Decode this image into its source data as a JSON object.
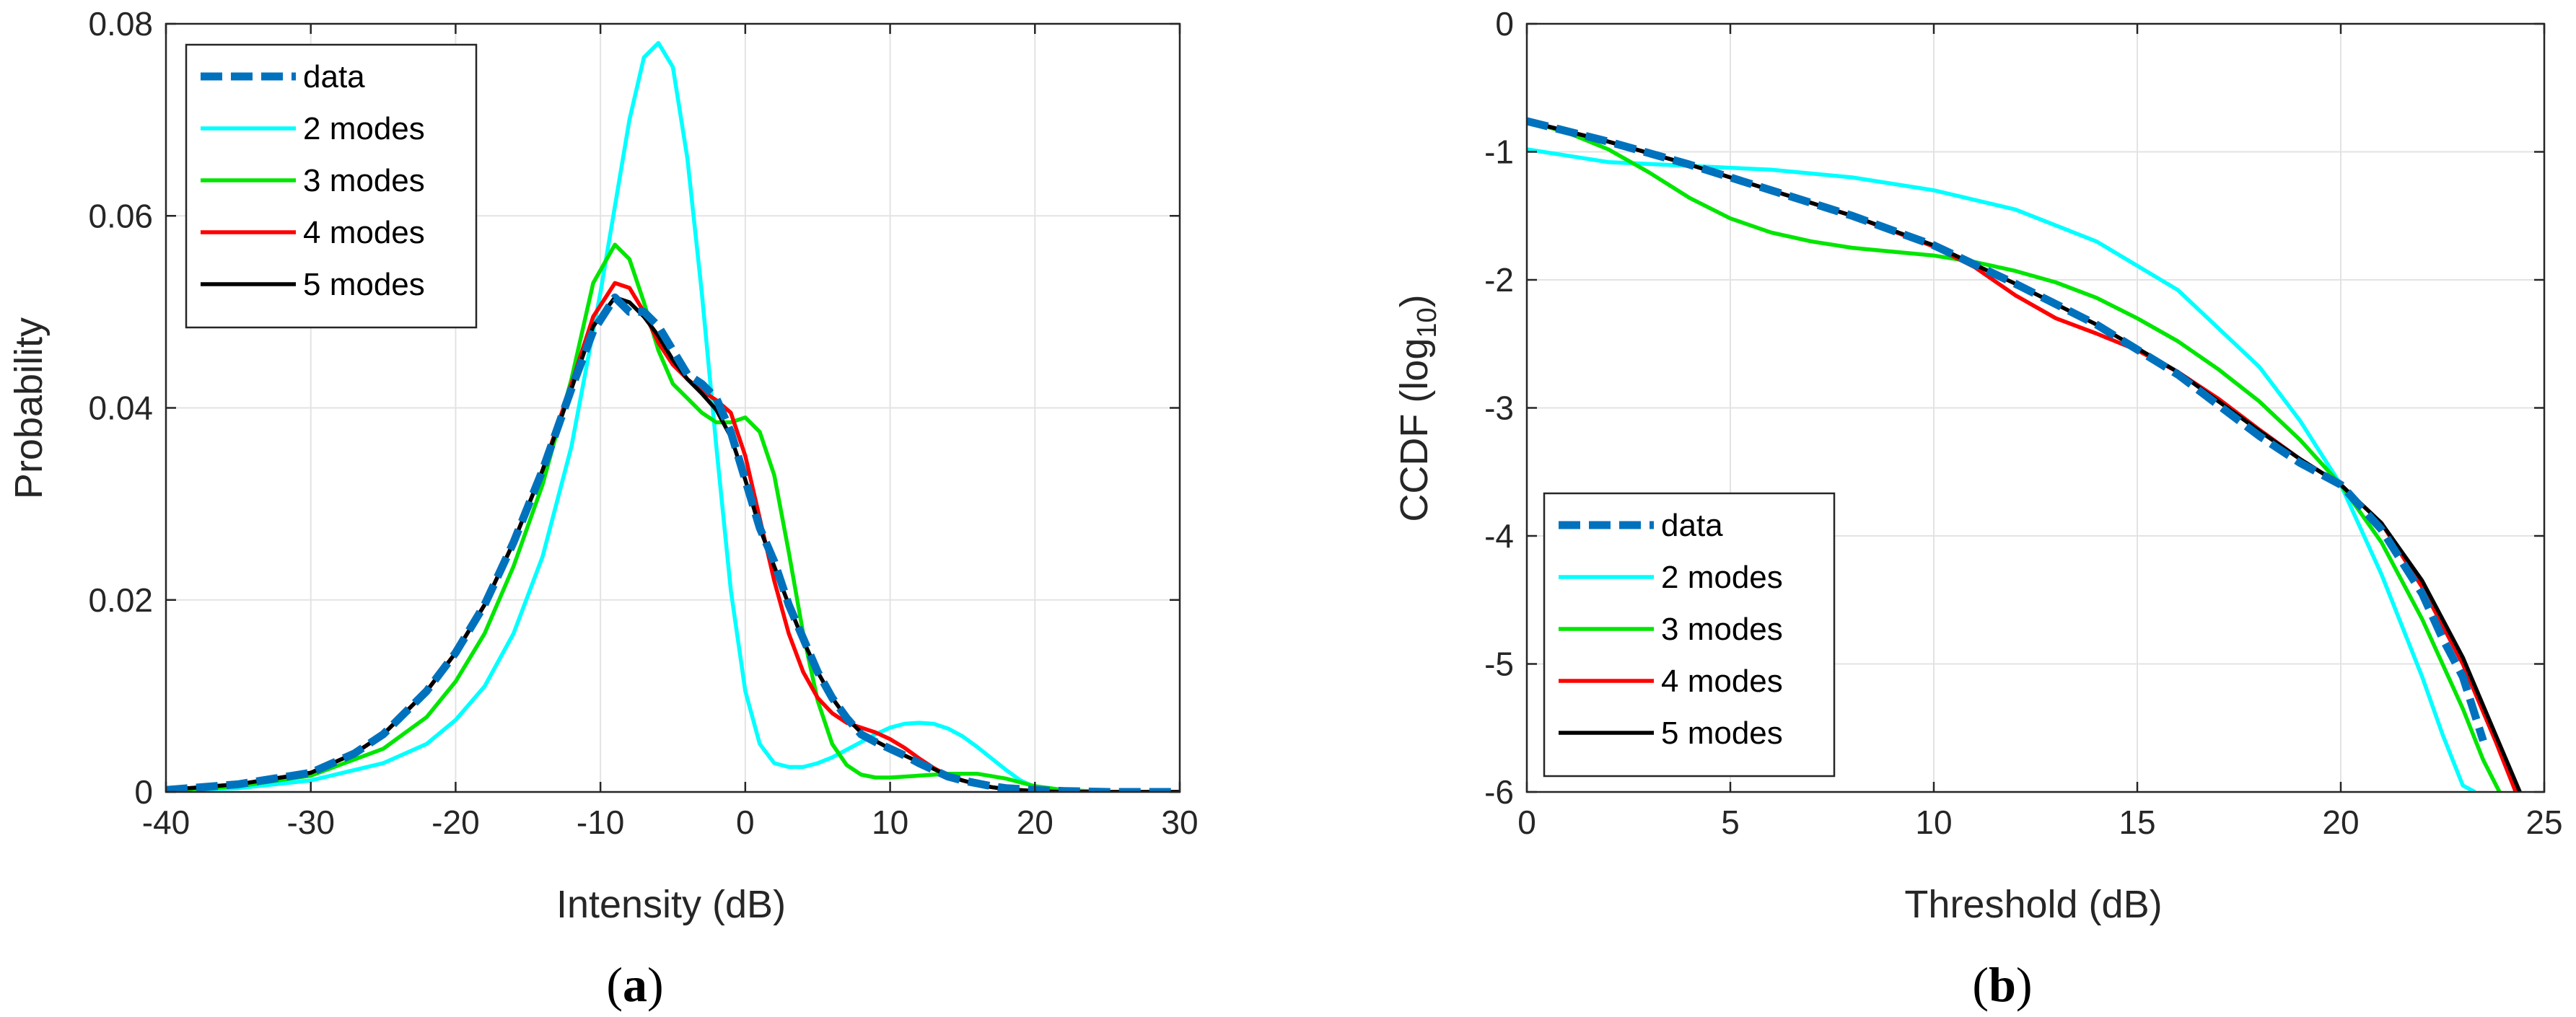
{
  "chart_data": [
    {
      "type": "line",
      "panel": "a",
      "caption": "(a)",
      "caption_letter": "a",
      "xlabel": "Intensity (dB)",
      "ylabel": "Probability",
      "xlim": [
        -40,
        30
      ],
      "ylim": [
        0,
        0.08
      ],
      "xticks": [
        -40,
        -30,
        -20,
        -10,
        0,
        10,
        20,
        30
      ],
      "xtick_labels": [
        "-40",
        "-30",
        "-20",
        "-10",
        "0",
        "10",
        "20",
        "30"
      ],
      "yticks": [
        0,
        0.02,
        0.04,
        0.06,
        0.08
      ],
      "ytick_labels": [
        "0",
        "0.02",
        "0.04",
        "0.06",
        "0.08"
      ],
      "grid": true,
      "legend_position": "top-left",
      "series": [
        {
          "name": "data",
          "color": "#0072bd",
          "style": "dashed",
          "x": [
            -40,
            -35,
            -30,
            -27,
            -25,
            -22,
            -20,
            -18,
            -16,
            -14,
            -12,
            -10.5,
            -9,
            -8,
            -7,
            -6,
            -5,
            -4,
            -3,
            -2,
            -1,
            0,
            1,
            2,
            3,
            4,
            5,
            6,
            7,
            8,
            9,
            10,
            11,
            12,
            13,
            14,
            15,
            16,
            17,
            18,
            20,
            22,
            25,
            30
          ],
          "y": [
            0.0002,
            0.0008,
            0.002,
            0.004,
            0.006,
            0.0105,
            0.0145,
            0.0195,
            0.026,
            0.0335,
            0.042,
            0.048,
            0.0515,
            0.05,
            0.05,
            0.0485,
            0.046,
            0.0435,
            0.0425,
            0.041,
            0.0375,
            0.0325,
            0.0275,
            0.024,
            0.0195,
            0.016,
            0.0125,
            0.0098,
            0.0077,
            0.006,
            0.0052,
            0.0045,
            0.0038,
            0.003,
            0.0023,
            0.0016,
            0.0012,
            0.0009,
            0.0006,
            0.0004,
            0.0002,
            0.0001,
            0.0,
            0.0
          ]
        },
        {
          "name": "2 modes",
          "color": "#00ffff",
          "style": "solid",
          "x": [
            -40,
            -35,
            -30,
            -25,
            -22,
            -20,
            -18,
            -16,
            -14,
            -12,
            -10,
            -9,
            -8,
            -7,
            -6,
            -5,
            -4,
            -3,
            -2,
            -1,
            0,
            1,
            2,
            3,
            4,
            5,
            6,
            7,
            8,
            9,
            10,
            11,
            12,
            13,
            14,
            15,
            16,
            17,
            18,
            19,
            20,
            22,
            25,
            30
          ],
          "y": [
            0.0001,
            0.0004,
            0.0012,
            0.003,
            0.005,
            0.0075,
            0.011,
            0.0165,
            0.0245,
            0.036,
            0.052,
            0.061,
            0.07,
            0.0765,
            0.078,
            0.0755,
            0.066,
            0.052,
            0.036,
            0.021,
            0.0105,
            0.005,
            0.003,
            0.0026,
            0.0026,
            0.003,
            0.0036,
            0.0044,
            0.0052,
            0.006,
            0.0067,
            0.0071,
            0.0072,
            0.0071,
            0.0066,
            0.0058,
            0.0047,
            0.0035,
            0.0023,
            0.0012,
            0.0005,
            0.0001,
            0.0,
            0.0
          ]
        },
        {
          "name": "3 modes",
          "color": "#00e600",
          "style": "solid",
          "x": [
            -40,
            -35,
            -30,
            -25,
            -22,
            -20,
            -18,
            -16,
            -14,
            -12,
            -10.5,
            -9,
            -8,
            -7,
            -6,
            -5,
            -4,
            -3,
            -2,
            -1,
            0,
            1,
            2,
            3,
            4,
            5,
            6,
            7,
            8,
            9,
            10,
            12,
            14,
            16,
            18,
            20,
            22,
            25,
            30
          ],
          "y": [
            0.0001,
            0.0006,
            0.0017,
            0.0045,
            0.0078,
            0.0115,
            0.0165,
            0.0235,
            0.032,
            0.043,
            0.053,
            0.057,
            0.0555,
            0.051,
            0.046,
            0.0425,
            0.041,
            0.0395,
            0.0385,
            0.0385,
            0.039,
            0.0375,
            0.033,
            0.025,
            0.0165,
            0.0095,
            0.005,
            0.0028,
            0.0018,
            0.0015,
            0.0015,
            0.0017,
            0.0019,
            0.0019,
            0.0014,
            0.0006,
            0.0002,
            0.0,
            0.0
          ]
        },
        {
          "name": "4 modes",
          "color": "#ff0000",
          "style": "solid",
          "x": [
            -40,
            -35,
            -30,
            -27,
            -25,
            -22,
            -20,
            -18,
            -16,
            -14,
            -12,
            -10.5,
            -9,
            -8,
            -7,
            -6,
            -5,
            -4,
            -3,
            -2,
            -1,
            0,
            1,
            2,
            3,
            4,
            5,
            6,
            7,
            8,
            9,
            10,
            11,
            12,
            13,
            14,
            15,
            16,
            17,
            18,
            20,
            22,
            25,
            30
          ],
          "y": [
            0.0002,
            0.0008,
            0.002,
            0.004,
            0.006,
            0.0105,
            0.0145,
            0.0195,
            0.026,
            0.0335,
            0.0425,
            0.0495,
            0.053,
            0.0525,
            0.05,
            0.0468,
            0.0445,
            0.043,
            0.0418,
            0.0408,
            0.0395,
            0.035,
            0.0285,
            0.022,
            0.0165,
            0.0125,
            0.0098,
            0.0082,
            0.0072,
            0.0067,
            0.0062,
            0.0055,
            0.0046,
            0.0035,
            0.0025,
            0.0017,
            0.0012,
            0.0008,
            0.0005,
            0.0003,
            0.0001,
            0.0,
            0.0,
            0.0
          ]
        },
        {
          "name": "5 modes",
          "color": "#000000",
          "style": "solid",
          "x": [
            -40,
            -35,
            -30,
            -27,
            -25,
            -22,
            -20,
            -18,
            -16,
            -14,
            -12,
            -10.5,
            -9,
            -8,
            -7,
            -6,
            -5,
            -4,
            -3,
            -2,
            -1,
            0,
            1,
            2,
            3,
            4,
            5,
            6,
            7,
            8,
            9,
            10,
            11,
            12,
            13,
            14,
            15,
            16,
            17,
            18,
            20,
            22,
            25,
            30
          ],
          "y": [
            0.0002,
            0.0008,
            0.002,
            0.004,
            0.006,
            0.0105,
            0.0145,
            0.0195,
            0.026,
            0.0335,
            0.042,
            0.0485,
            0.0515,
            0.051,
            0.0495,
            0.0475,
            0.045,
            0.043,
            0.0415,
            0.0398,
            0.037,
            0.0325,
            0.0275,
            0.0235,
            0.0195,
            0.0158,
            0.0125,
            0.0098,
            0.0077,
            0.0062,
            0.0053,
            0.0045,
            0.0038,
            0.0031,
            0.0024,
            0.0017,
            0.0012,
            0.0008,
            0.0005,
            0.0003,
            0.0001,
            0.0,
            0.0,
            0.0
          ]
        }
      ]
    },
    {
      "type": "line",
      "panel": "b",
      "caption": "(b)",
      "caption_letter": "b",
      "xlabel": "Threshold (dB)",
      "ylabel": "CCDF (log10)",
      "ylabel_main": "CCDF (log",
      "ylabel_sub": "10",
      "ylabel_close": ")",
      "xlim": [
        0,
        25
      ],
      "ylim": [
        -6,
        0
      ],
      "xticks": [
        0,
        5,
        10,
        15,
        20,
        25
      ],
      "xtick_labels": [
        "0",
        "5",
        "10",
        "15",
        "20",
        "25"
      ],
      "yticks": [
        -6,
        -5,
        -4,
        -3,
        -2,
        -1,
        0
      ],
      "ytick_labels": [
        "-6",
        "-5",
        "-4",
        "-3",
        "-2",
        "-1",
        "0"
      ],
      "grid": true,
      "legend_position": "bottom-left",
      "series": [
        {
          "name": "data",
          "color": "#0072bd",
          "style": "dashed",
          "x": [
            0,
            2,
            4,
            6,
            8,
            10,
            12,
            14,
            16,
            17,
            18,
            19,
            20,
            21,
            22,
            22.5,
            23,
            23.3,
            23.5
          ],
          "y": [
            -0.76,
            -0.92,
            -1.1,
            -1.3,
            -1.5,
            -1.73,
            -2.03,
            -2.35,
            -2.74,
            -2.98,
            -3.22,
            -3.43,
            -3.6,
            -3.95,
            -4.45,
            -4.8,
            -5.1,
            -5.4,
            -5.6
          ]
        },
        {
          "name": "2 modes",
          "color": "#00ffff",
          "style": "solid",
          "x": [
            0,
            2,
            4,
            6,
            8,
            10,
            12,
            14,
            16,
            18,
            19,
            20,
            21,
            22,
            22.5,
            23,
            23.3
          ],
          "y": [
            -0.98,
            -1.08,
            -1.11,
            -1.14,
            -1.2,
            -1.3,
            -1.45,
            -1.7,
            -2.08,
            -2.68,
            -3.1,
            -3.6,
            -4.3,
            -5.1,
            -5.55,
            -5.95,
            -6.0
          ]
        },
        {
          "name": "3 modes",
          "color": "#00e600",
          "style": "solid",
          "x": [
            0,
            1,
            2,
            3,
            4,
            5,
            6,
            7,
            8,
            9,
            10,
            11,
            12,
            13,
            14,
            15,
            16,
            17,
            18,
            19,
            20,
            21,
            22,
            23,
            23.5,
            23.9
          ],
          "y": [
            -0.76,
            -0.85,
            -0.98,
            -1.16,
            -1.36,
            -1.52,
            -1.63,
            -1.7,
            -1.75,
            -1.78,
            -1.81,
            -1.86,
            -1.93,
            -2.02,
            -2.14,
            -2.3,
            -2.48,
            -2.7,
            -2.95,
            -3.25,
            -3.6,
            -4.05,
            -4.65,
            -5.35,
            -5.75,
            -6.0
          ]
        },
        {
          "name": "4 modes",
          "color": "#ff0000",
          "style": "solid",
          "x": [
            0,
            2,
            4,
            6,
            8,
            10,
            11,
            12,
            13,
            14,
            15,
            16,
            17,
            18,
            19,
            20,
            21,
            22,
            23,
            23.8,
            24.3
          ],
          "y": [
            -0.76,
            -0.92,
            -1.1,
            -1.3,
            -1.5,
            -1.74,
            -1.9,
            -2.12,
            -2.3,
            -2.42,
            -2.55,
            -2.72,
            -2.93,
            -3.17,
            -3.4,
            -3.6,
            -3.9,
            -4.4,
            -5.0,
            -5.6,
            -6.0
          ]
        },
        {
          "name": "5 modes",
          "color": "#000000",
          "style": "solid",
          "x": [
            0,
            2,
            4,
            6,
            8,
            10,
            12,
            14,
            16,
            17,
            18,
            19,
            20,
            21,
            22,
            23,
            23.8,
            24.4
          ],
          "y": [
            -0.76,
            -0.92,
            -1.1,
            -1.3,
            -1.5,
            -1.73,
            -2.03,
            -2.35,
            -2.72,
            -2.95,
            -3.18,
            -3.4,
            -3.6,
            -3.9,
            -4.35,
            -4.95,
            -5.55,
            -6.0
          ]
        }
      ]
    }
  ]
}
